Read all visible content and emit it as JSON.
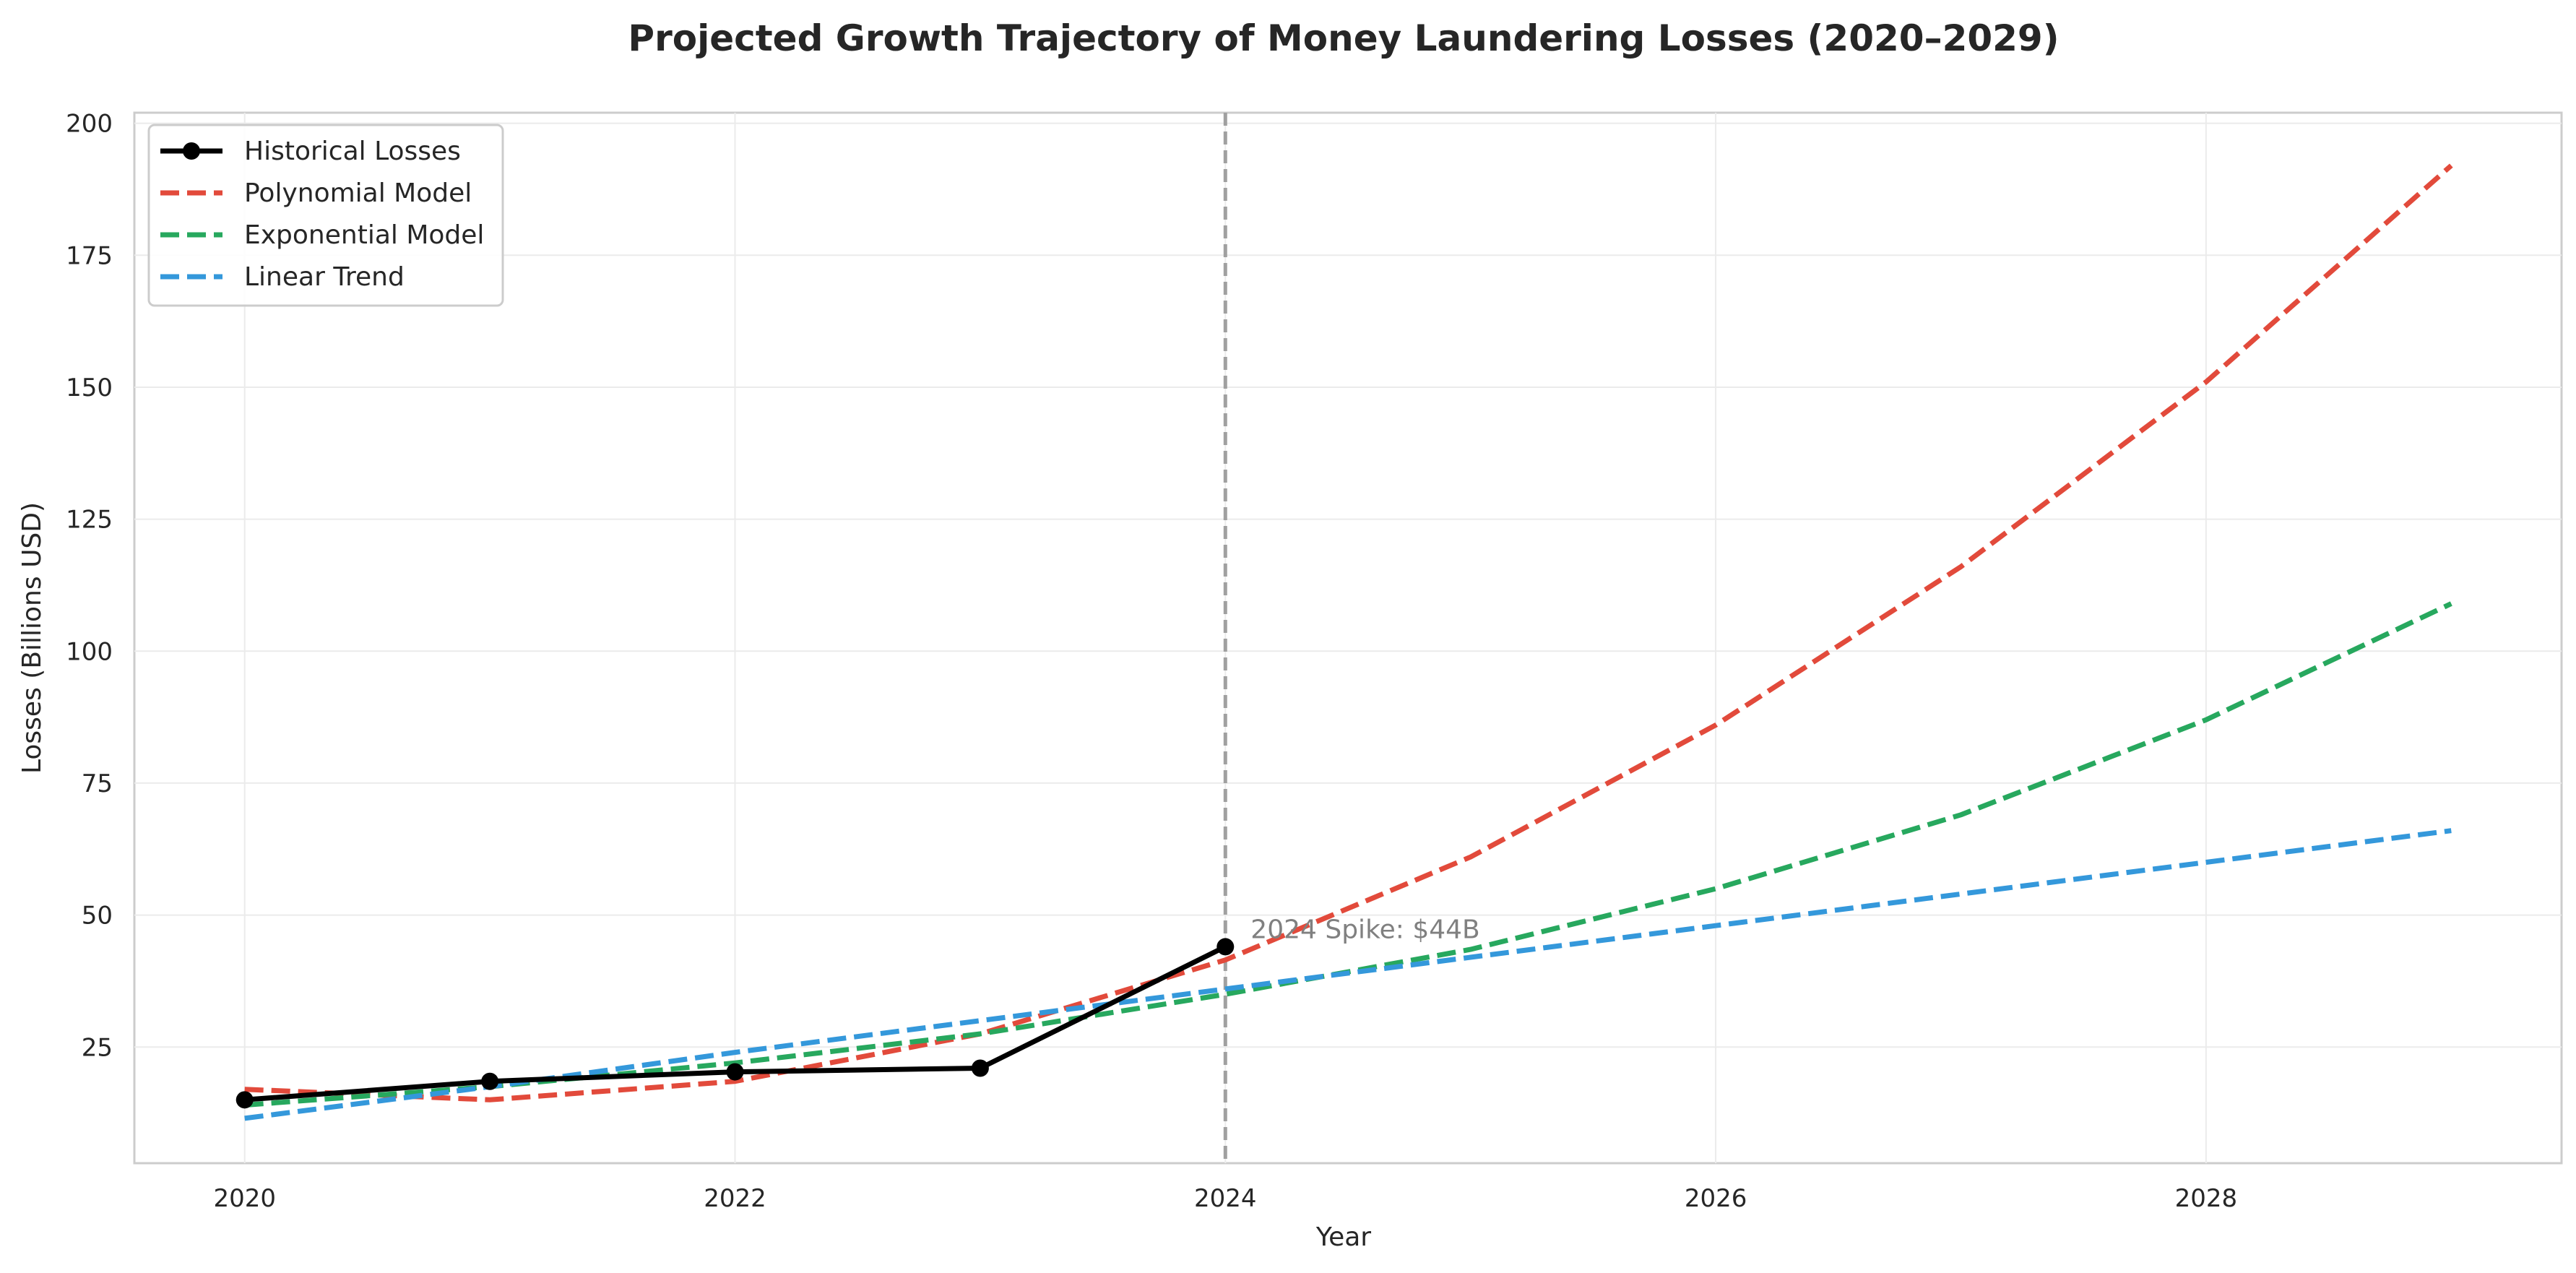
{
  "chart_data": {
    "type": "line",
    "title": "Projected Growth Trajectory of Money Laundering Losses (2020–2029)",
    "xlabel": "Year",
    "ylabel": "Losses (Billions USD)",
    "xlim": [
      2019.55,
      2029.45
    ],
    "ylim": [
      3,
      202
    ],
    "x_ticks": [
      2020,
      2022,
      2024,
      2026,
      2028
    ],
    "y_ticks": [
      25,
      50,
      75,
      100,
      125,
      150,
      175,
      200
    ],
    "grid": true,
    "legend_position": "top-left",
    "series": [
      {
        "name": "Historical Losses",
        "color": "#000000",
        "style": "solid",
        "markers": true,
        "x": [
          2020,
          2021,
          2022,
          2023,
          2024
        ],
        "values": [
          15,
          18.5,
          20.3,
          21,
          44
        ]
      },
      {
        "name": "Polynomial Model",
        "color": "#e24a3b",
        "style": "dashed",
        "x": [
          2020,
          2021,
          2022,
          2023,
          2024,
          2025,
          2026,
          2027,
          2028,
          2029
        ],
        "values": [
          17,
          15,
          18.5,
          27.5,
          41.5,
          61,
          86,
          116,
          151,
          192
        ]
      },
      {
        "name": "Exponential Model",
        "color": "#27a85e",
        "style": "dashed",
        "x": [
          2020,
          2021,
          2022,
          2023,
          2024,
          2025,
          2026,
          2027,
          2028,
          2029
        ],
        "values": [
          14,
          17.5,
          22,
          27.5,
          35,
          43.5,
          55,
          69,
          87,
          109
        ]
      },
      {
        "name": "Linear Trend",
        "color": "#3498db",
        "style": "dashed",
        "x": [
          2020,
          2021,
          2022,
          2023,
          2024,
          2025,
          2026,
          2027,
          2028,
          2029
        ],
        "values": [
          11.5,
          17.5,
          24,
          30,
          36,
          42,
          48,
          54,
          60,
          66
        ]
      }
    ],
    "vline": {
      "x": 2024,
      "color": "#a0a0a0",
      "style": "dashed"
    },
    "annotation": {
      "text": "2024 Spike: $44B",
      "x": 2024,
      "y": 44
    }
  }
}
